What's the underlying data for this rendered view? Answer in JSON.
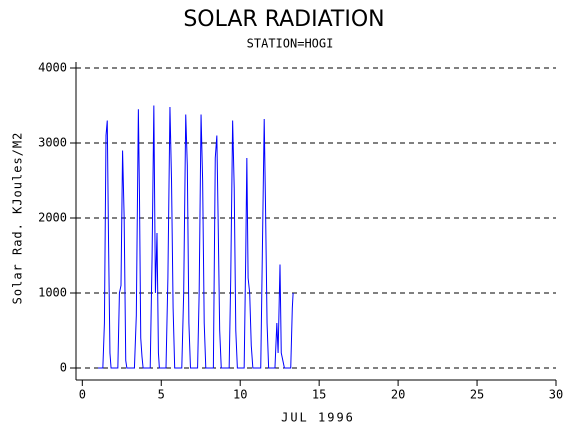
{
  "chart_data": {
    "type": "line",
    "title": "SOLAR RADIATION",
    "subtitle": "STATION=HOGI",
    "x_label": "JUL 1996",
    "y_label": "Solar Rad. KJoules/M2",
    "xlim": [
      -0.4,
      30
    ],
    "xticks": [
      0,
      5,
      10,
      15,
      20,
      25,
      30
    ],
    "ylim": [
      -160,
      4080
    ],
    "yticks": [
      0,
      1000,
      2000,
      3000,
      4000
    ],
    "grid": true,
    "series": [
      {
        "name": "Solar Rad.",
        "color": "#0000ff",
        "x": [
          1.0,
          1.3,
          1.4,
          1.5,
          1.58,
          1.66,
          1.75,
          1.82,
          2.25,
          2.35,
          2.45,
          2.55,
          2.65,
          2.75,
          2.82,
          3.3,
          3.42,
          3.55,
          3.62,
          3.7,
          3.78,
          3.85,
          4.3,
          4.42,
          4.53,
          4.63,
          4.73,
          4.82,
          4.88,
          5.3,
          5.42,
          5.55,
          5.65,
          5.75,
          5.85,
          6.3,
          6.42,
          6.55,
          6.65,
          6.75,
          6.85,
          7.3,
          7.4,
          7.52,
          7.62,
          7.72,
          7.82,
          8.3,
          8.42,
          8.52,
          8.6,
          8.7,
          8.8,
          9.3,
          9.4,
          9.52,
          9.62,
          9.72,
          9.82,
          10.25,
          10.35,
          10.42,
          10.5,
          10.6,
          10.7,
          10.8,
          11.3,
          11.4,
          11.52,
          11.6,
          11.7,
          11.8,
          12.2,
          12.32,
          12.4,
          12.52,
          12.6,
          12.7,
          12.8,
          13.2,
          13.3,
          13.35
        ],
        "values": [
          0,
          0,
          600,
          3100,
          3300,
          1700,
          200,
          0,
          0,
          1000,
          1100,
          2900,
          2000,
          100,
          0,
          0,
          700,
          3450,
          2300,
          400,
          150,
          0,
          0,
          1500,
          3500,
          1000,
          1800,
          200,
          0,
          0,
          1200,
          3480,
          2500,
          800,
          0,
          0,
          1000,
          3380,
          2700,
          600,
          0,
          0,
          1000,
          3380,
          2500,
          600,
          0,
          0,
          2800,
          3100,
          2000,
          500,
          0,
          0,
          1200,
          3300,
          2400,
          500,
          0,
          0,
          1500,
          2800,
          1200,
          1000,
          300,
          0,
          0,
          1500,
          3320,
          2200,
          600,
          0,
          0,
          600,
          200,
          1380,
          200,
          100,
          0,
          0,
          800,
          1000
        ]
      }
    ]
  }
}
